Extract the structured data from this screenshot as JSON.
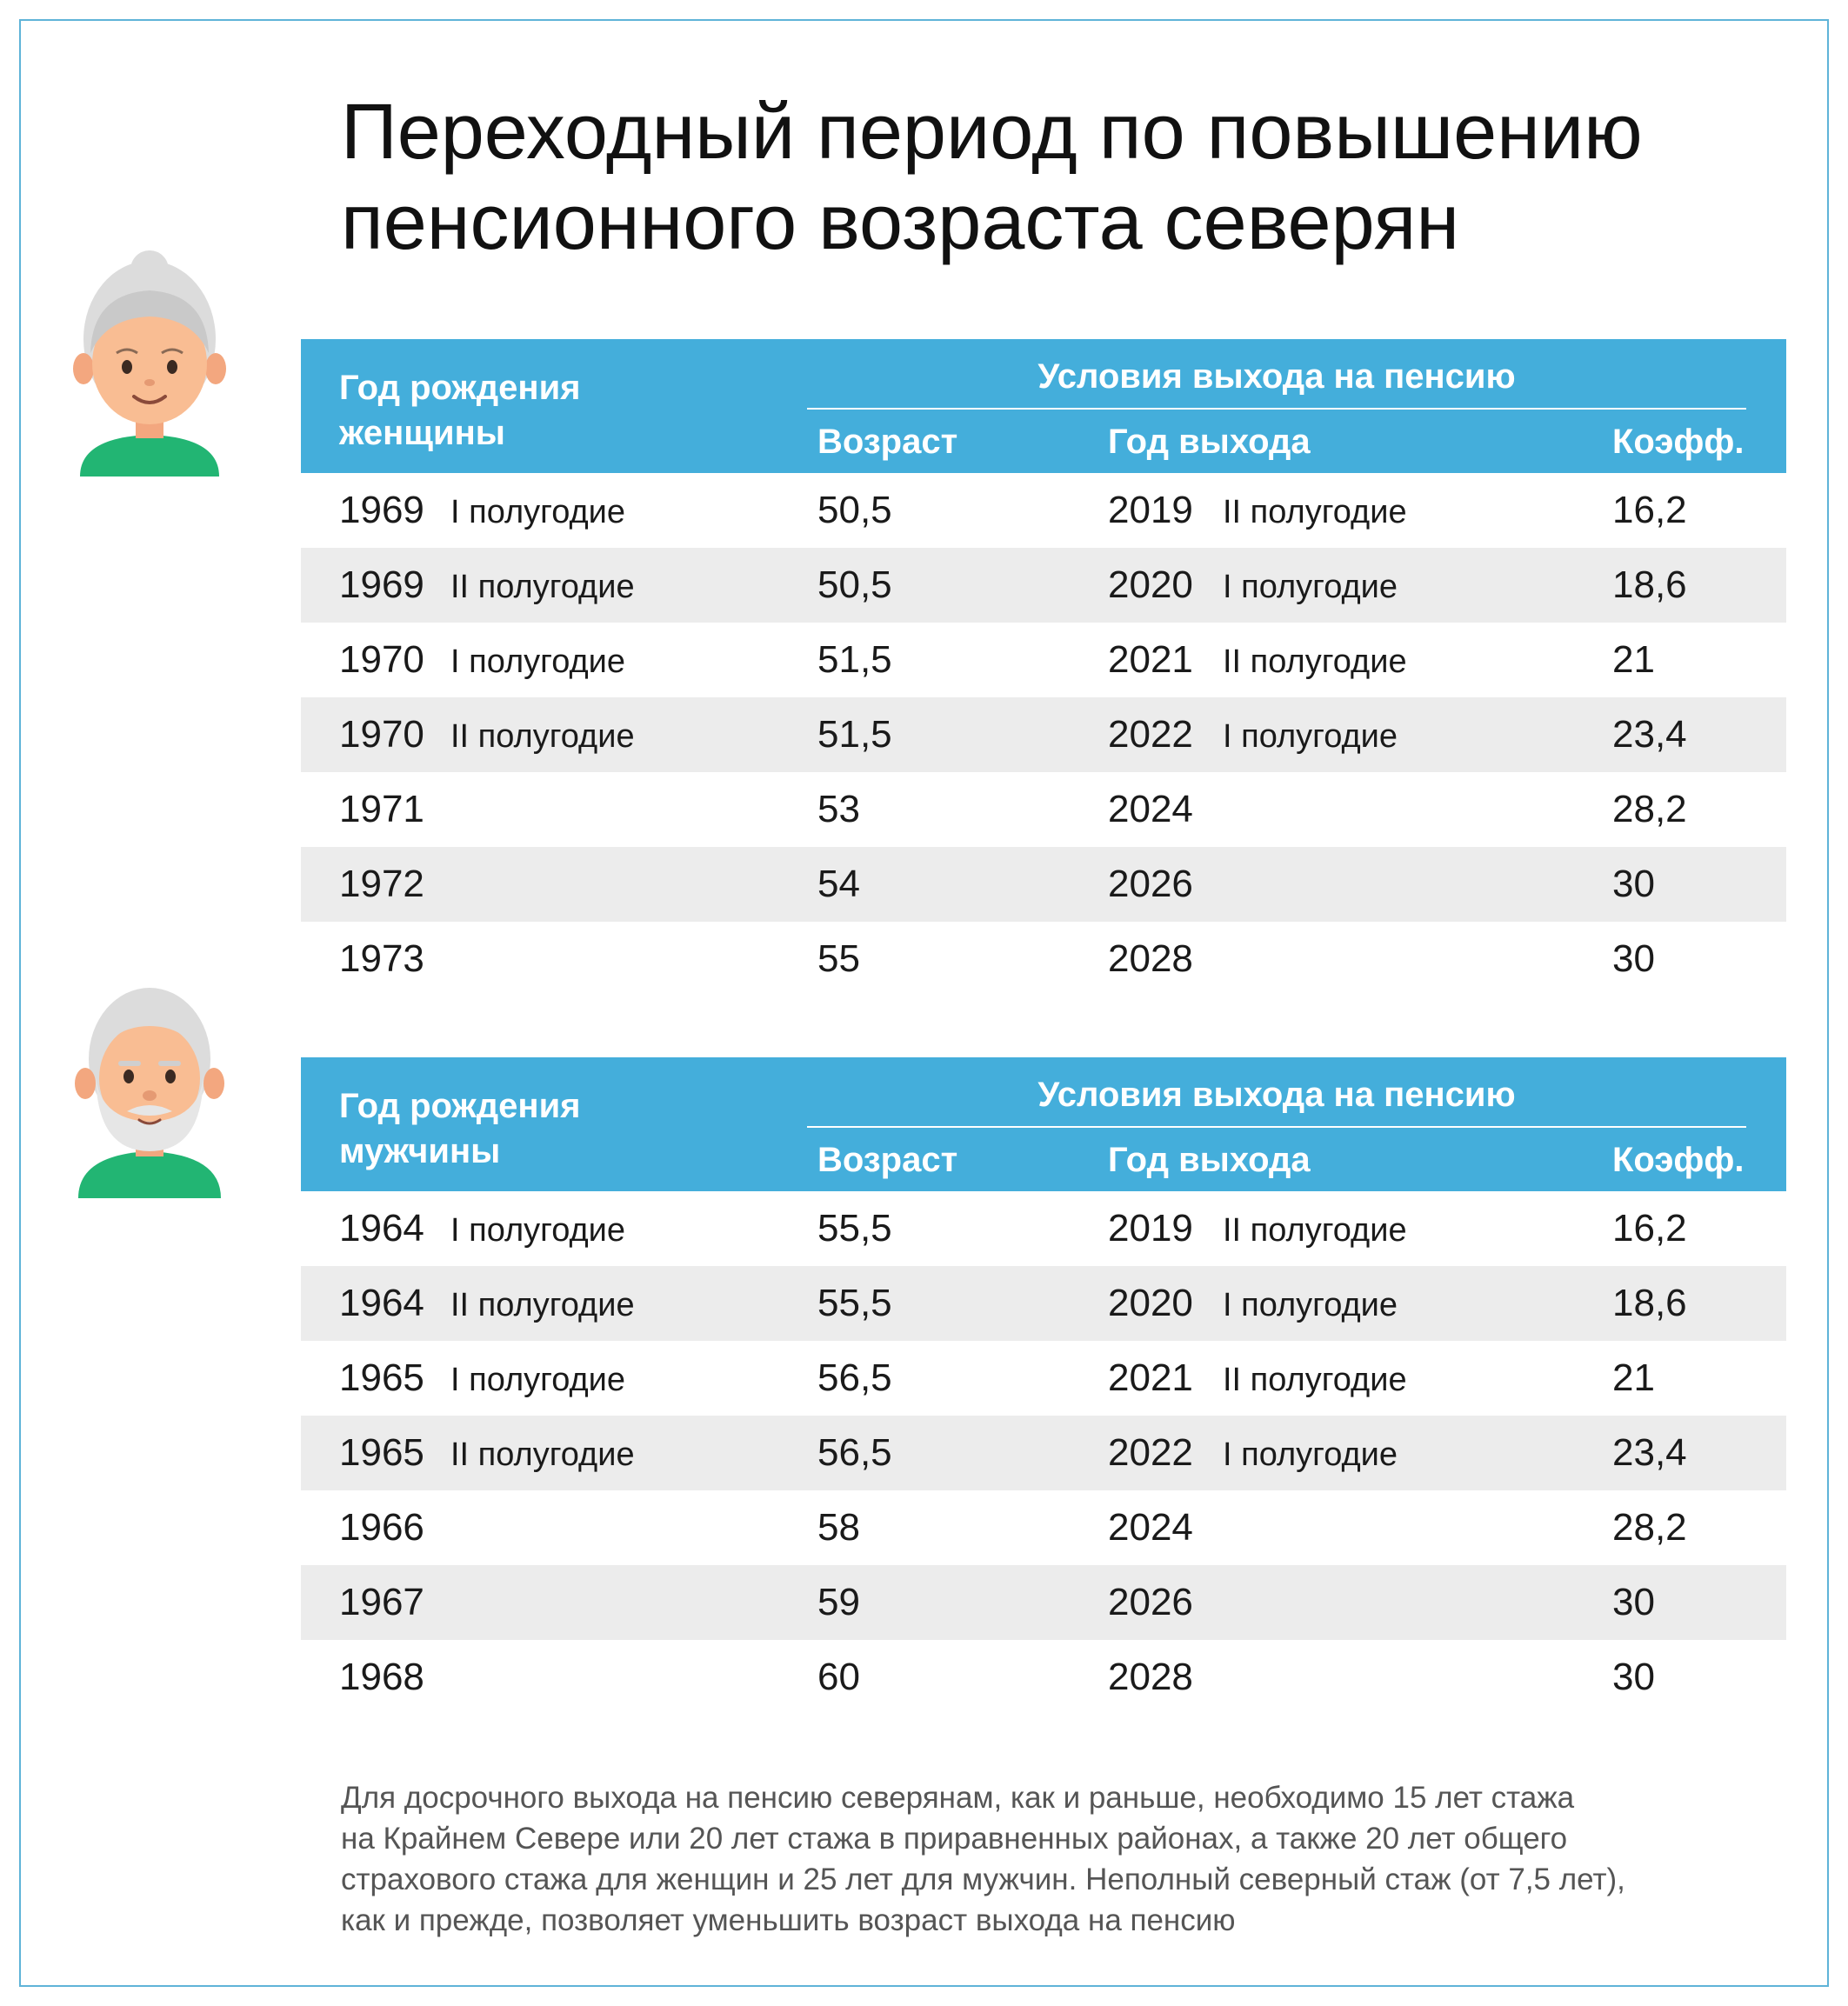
{
  "title": {
    "line1": "Переходный период по повышению",
    "line2": "пенсионного возраста северян"
  },
  "colors": {
    "header_bg": "#44aedb",
    "row_alt": "#ececec",
    "frame": "#5fb4d8"
  },
  "icons": {
    "woman": "elderly-woman-avatar",
    "man": "elderly-man-avatar"
  },
  "women_table": {
    "birth_header_line1": "Год рождения",
    "birth_header_line2": "женщины",
    "conditions_header": "Условия выхода на пенсию",
    "col_age": "Возраст",
    "col_year": "Год выхода",
    "col_coef": "Коэфф.",
    "rows": [
      {
        "birth": "1969",
        "birth_half": "I полугодие",
        "age": "50,5",
        "year": "2019",
        "year_half": "II полугодие",
        "coef": "16,2"
      },
      {
        "birth": "1969",
        "birth_half": "II полугодие",
        "age": "50,5",
        "year": "2020",
        "year_half": "I полугодие",
        "coef": "18,6"
      },
      {
        "birth": "1970",
        "birth_half": "I полугодие",
        "age": "51,5",
        "year": "2021",
        "year_half": "II полугодие",
        "coef": "21"
      },
      {
        "birth": "1970",
        "birth_half": "II полугодие",
        "age": "51,5",
        "year": "2022",
        "year_half": "I полугодие",
        "coef": "23,4"
      },
      {
        "birth": "1971",
        "birth_half": "",
        "age": "53",
        "year": "2024",
        "year_half": "",
        "coef": "28,2"
      },
      {
        "birth": "1972",
        "birth_half": "",
        "age": "54",
        "year": "2026",
        "year_half": "",
        "coef": "30"
      },
      {
        "birth": "1973",
        "birth_half": "",
        "age": "55",
        "year": "2028",
        "year_half": "",
        "coef": "30"
      }
    ]
  },
  "men_table": {
    "birth_header_line1": "Год рождения",
    "birth_header_line2": "мужчины",
    "conditions_header": "Условия выхода на пенсию",
    "col_age": "Возраст",
    "col_year": "Год выхода",
    "col_coef": "Коэфф.",
    "rows": [
      {
        "birth": "1964",
        "birth_half": "I полугодие",
        "age": "55,5",
        "year": "2019",
        "year_half": "II полугодие",
        "coef": "16,2"
      },
      {
        "birth": "1964",
        "birth_half": "II полугодие",
        "age": "55,5",
        "year": "2020",
        "year_half": "I полугодие",
        "coef": "18,6"
      },
      {
        "birth": "1965",
        "birth_half": "I полугодие",
        "age": "56,5",
        "year": "2021",
        "year_half": "II полугодие",
        "coef": "21"
      },
      {
        "birth": "1965",
        "birth_half": "II полугодие",
        "age": "56,5",
        "year": "2022",
        "year_half": "I полугодие",
        "coef": "23,4"
      },
      {
        "birth": "1966",
        "birth_half": "",
        "age": "58",
        "year": "2024",
        "year_half": "",
        "coef": "28,2"
      },
      {
        "birth": "1967",
        "birth_half": "",
        "age": "59",
        "year": "2026",
        "year_half": "",
        "coef": "30"
      },
      {
        "birth": "1968",
        "birth_half": "",
        "age": "60",
        "year": "2028",
        "year_half": "",
        "coef": "30"
      }
    ]
  },
  "footnote": {
    "line1": "Для досрочного выхода на пенсию северянам, как и раньше, необходимо 15 лет стажа",
    "line2": "на Крайнем Севере или 20 лет стажа в приравненных районах, а также 20 лет общего",
    "line3": "страхового стажа для женщин и 25 лет для мужчин. Неполный северный стаж (от 7,5 лет),",
    "line4": "как и прежде, позволяет уменьшить возраст выхода на пенсию"
  }
}
